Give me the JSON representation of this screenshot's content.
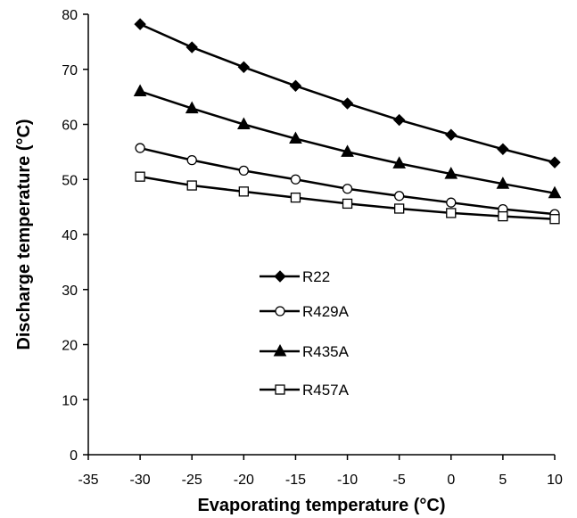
{
  "chart_data": {
    "type": "line",
    "title": "",
    "xlabel": "Evaporating temperature (°C)",
    "ylabel": "Discharge temperature (°C)",
    "xlim": [
      -35,
      10
    ],
    "ylim": [
      0,
      80
    ],
    "xticks": [
      -35,
      -30,
      -25,
      -20,
      -15,
      -10,
      -5,
      0,
      5,
      10
    ],
    "yticks": [
      0,
      10,
      20,
      30,
      40,
      50,
      60,
      70,
      80
    ],
    "x": [
      -30,
      -25,
      -20,
      -15,
      -10,
      -5,
      0,
      5,
      10
    ],
    "grid": false,
    "legend_position": "center-left",
    "series": [
      {
        "name": "R22",
        "marker": "diamond",
        "values": [
          78.2,
          74.0,
          70.4,
          67.0,
          63.8,
          60.8,
          58.1,
          55.5,
          53.1
        ]
      },
      {
        "name": "R429A",
        "marker": "circle-open",
        "values": [
          55.7,
          53.5,
          51.6,
          50.0,
          48.3,
          47.0,
          45.8,
          44.6,
          43.7
        ]
      },
      {
        "name": "R435A",
        "marker": "triangle",
        "values": [
          66.0,
          62.9,
          60.0,
          57.4,
          55.0,
          52.9,
          51.0,
          49.2,
          47.5
        ]
      },
      {
        "name": "R457A",
        "marker": "square-open",
        "values": [
          50.5,
          48.9,
          47.8,
          46.7,
          45.6,
          44.7,
          43.9,
          43.3,
          42.8
        ]
      }
    ]
  }
}
